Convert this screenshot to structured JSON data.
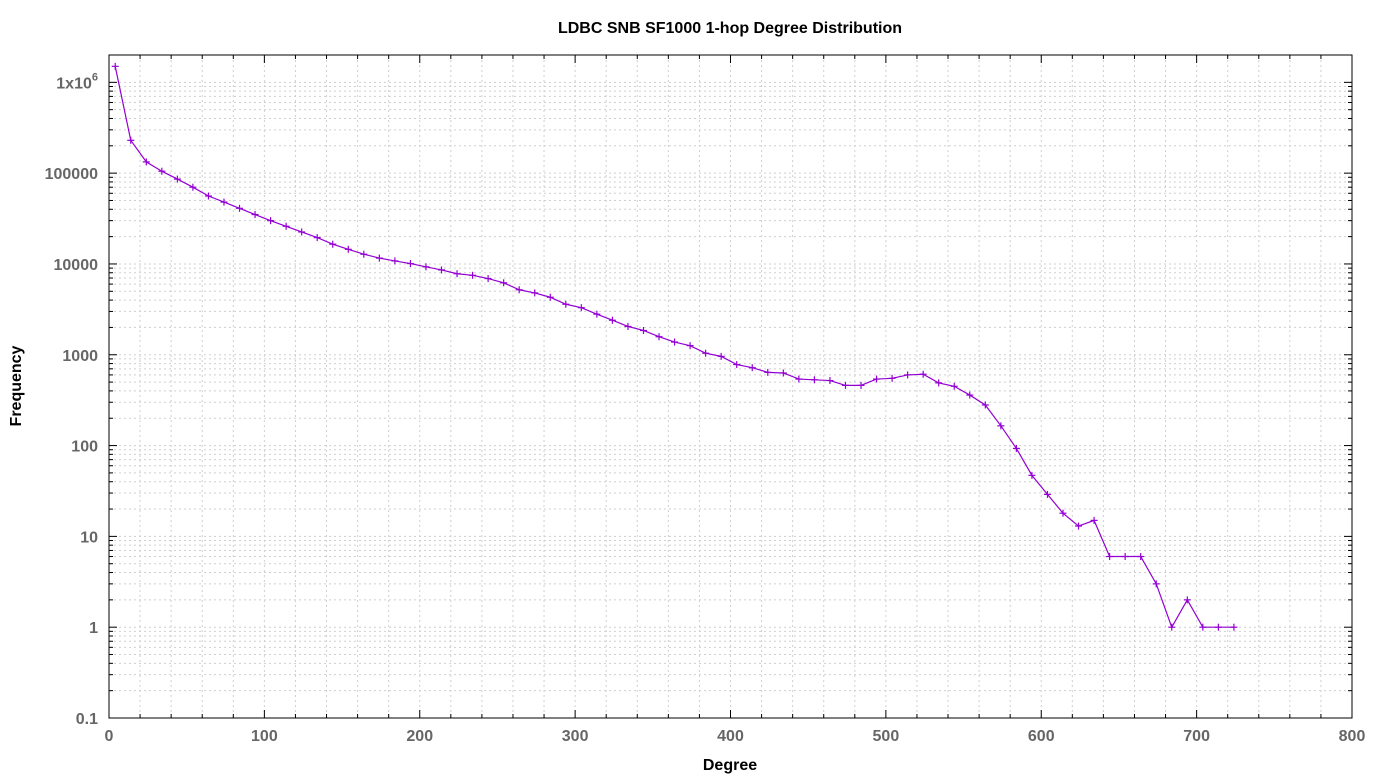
{
  "chart_data": {
    "type": "line",
    "title": "LDBC SNB SF1000 1-hop Degree Distribution",
    "xlabel": "Degree",
    "ylabel": "Frequency",
    "xscale": "linear",
    "yscale": "log",
    "xlim": [
      0,
      800
    ],
    "ylim": [
      0.1,
      2000000
    ],
    "grid": true,
    "legend": "none",
    "x_ticks": [
      {
        "value": 0,
        "label": "0"
      },
      {
        "value": 100,
        "label": "100"
      },
      {
        "value": 200,
        "label": "200"
      },
      {
        "value": 300,
        "label": "300"
      },
      {
        "value": 400,
        "label": "400"
      },
      {
        "value": 500,
        "label": "500"
      },
      {
        "value": 600,
        "label": "600"
      },
      {
        "value": 700,
        "label": "700"
      },
      {
        "value": 800,
        "label": "800"
      }
    ],
    "y_ticks": [
      {
        "value": 0.1,
        "label": "0.1"
      },
      {
        "value": 1,
        "label": "1"
      },
      {
        "value": 10,
        "label": "10"
      },
      {
        "value": 100,
        "label": "100"
      },
      {
        "value": 1000,
        "label": "1000"
      },
      {
        "value": 10000,
        "label": "10000"
      },
      {
        "value": 100000,
        "label": "100000"
      },
      {
        "value": 1000000,
        "label": "1x10",
        "label_sup": "6"
      }
    ],
    "series": [
      {
        "color": "#9400d3",
        "marker": "plus",
        "points": [
          [
            4,
            1500000
          ],
          [
            14,
            230000
          ],
          [
            24,
            133000
          ],
          [
            34,
            105000
          ],
          [
            44,
            86000
          ],
          [
            54,
            70000
          ],
          [
            64,
            56000
          ],
          [
            74,
            48000
          ],
          [
            84,
            41000
          ],
          [
            94,
            35000
          ],
          [
            104,
            30000
          ],
          [
            114,
            26000
          ],
          [
            124,
            22500
          ],
          [
            134,
            19500
          ],
          [
            144,
            16500
          ],
          [
            154,
            14500
          ],
          [
            164,
            12800
          ],
          [
            174,
            11600
          ],
          [
            184,
            10800
          ],
          [
            194,
            10100
          ],
          [
            204,
            9300
          ],
          [
            214,
            8600
          ],
          [
            224,
            7800
          ],
          [
            234,
            7500
          ],
          [
            244,
            6900
          ],
          [
            254,
            6200
          ],
          [
            264,
            5200
          ],
          [
            274,
            4800
          ],
          [
            284,
            4300
          ],
          [
            294,
            3600
          ],
          [
            304,
            3300
          ],
          [
            314,
            2800
          ],
          [
            324,
            2400
          ],
          [
            334,
            2050
          ],
          [
            344,
            1850
          ],
          [
            354,
            1580
          ],
          [
            364,
            1380
          ],
          [
            374,
            1260
          ],
          [
            384,
            1040
          ],
          [
            394,
            960
          ],
          [
            404,
            780
          ],
          [
            414,
            720
          ],
          [
            424,
            640
          ],
          [
            434,
            630
          ],
          [
            444,
            540
          ],
          [
            454,
            530
          ],
          [
            464,
            520
          ],
          [
            474,
            460
          ],
          [
            484,
            460
          ],
          [
            494,
            540
          ],
          [
            504,
            550
          ],
          [
            514,
            600
          ],
          [
            524,
            610
          ],
          [
            534,
            490
          ],
          [
            544,
            450
          ],
          [
            554,
            360
          ],
          [
            564,
            280
          ],
          [
            574,
            165
          ],
          [
            584,
            93
          ],
          [
            594,
            47
          ],
          [
            604,
            29
          ],
          [
            614,
            18
          ],
          [
            624,
            13
          ],
          [
            634,
            15
          ],
          [
            644,
            6
          ],
          [
            654,
            6
          ],
          [
            664,
            6
          ],
          [
            674,
            3
          ],
          [
            684,
            1
          ],
          [
            694,
            2
          ],
          [
            704,
            1
          ],
          [
            714,
            1
          ],
          [
            724,
            1
          ]
        ]
      }
    ]
  }
}
